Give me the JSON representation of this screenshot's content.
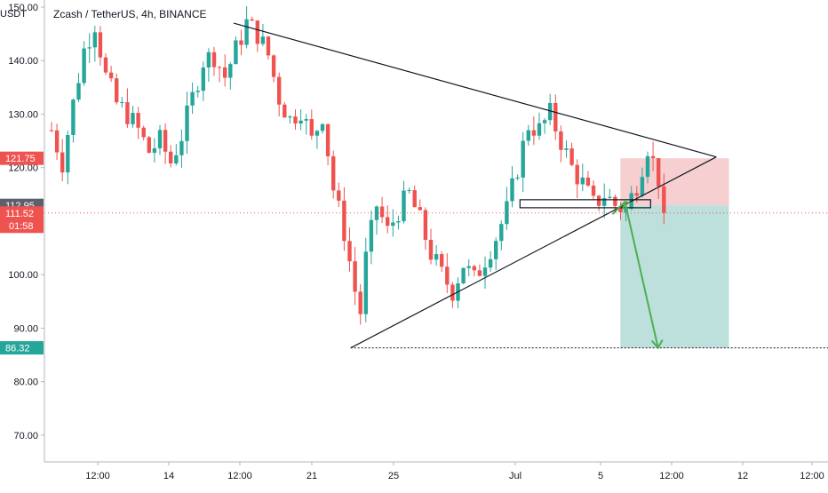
{
  "header": {
    "currency": "USDT",
    "title": "Zcash / TetherUS, 4h, BINANCE"
  },
  "colors": {
    "up": "#26a69a",
    "down": "#ef5350",
    "risk_zone": "#f4c7c9",
    "reward_zone": "#b2dbd6",
    "arrow": "#4caf50",
    "lines": "#131722"
  },
  "chart_data": {
    "type": "candlestick",
    "title": "Zcash / TetherUS, 4h, BINANCE",
    "ylabel": "USDT",
    "ylim": [
      65,
      150
    ],
    "y_ticks": [
      {
        "value": 70,
        "label": "70.00"
      },
      {
        "value": 80,
        "label": "80.00"
      },
      {
        "value": 90,
        "label": "90.00"
      },
      {
        "value": 100,
        "label": "100.00"
      },
      {
        "value": 120,
        "label": "120.00"
      },
      {
        "value": 130,
        "label": "130.00"
      },
      {
        "value": 140,
        "label": "140.00"
      },
      {
        "value": 150,
        "label": "150.00"
      }
    ],
    "x_ticks": [
      "12:00",
      "14",
      "12:00",
      "21",
      "25",
      "Jul",
      "5",
      "12:00",
      "12",
      "12:00"
    ],
    "price_labels": [
      {
        "value": 121.75,
        "label": "121.75",
        "kind": "stop"
      },
      {
        "value": 112.95,
        "label": "112.95",
        "kind": "entry"
      },
      {
        "value": 111.52,
        "label": "111.52",
        "kind": "last"
      },
      {
        "value": 86.32,
        "label": "86.32",
        "kind": "target"
      }
    ],
    "countdown": "01:58",
    "last_price": 111.52,
    "target_price": 86.32,
    "stop_price": 121.75,
    "entry_price": 112.95,
    "grid": false,
    "legend": "none",
    "price_path": [
      [
        0,
        127
      ],
      [
        2,
        121
      ],
      [
        4,
        132
      ],
      [
        6,
        142
      ],
      [
        8,
        147
      ],
      [
        10,
        137
      ],
      [
        12,
        132
      ],
      [
        14,
        130
      ],
      [
        16,
        127
      ],
      [
        18,
        123
      ],
      [
        20,
        125
      ],
      [
        22,
        121
      ],
      [
        24,
        126
      ],
      [
        26,
        133
      ],
      [
        28,
        140
      ],
      [
        30,
        141
      ],
      [
        32,
        137
      ],
      [
        34,
        142
      ],
      [
        36,
        147
      ],
      [
        38,
        145
      ],
      [
        40,
        141
      ],
      [
        42,
        133
      ],
      [
        44,
        129
      ],
      [
        46,
        131
      ],
      [
        48,
        125
      ],
      [
        50,
        130
      ],
      [
        52,
        116
      ],
      [
        54,
        108
      ],
      [
        56,
        97
      ],
      [
        57,
        93
      ],
      [
        58,
        103
      ],
      [
        60,
        113
      ],
      [
        62,
        108
      ],
      [
        64,
        112
      ],
      [
        66,
        115
      ],
      [
        68,
        110
      ],
      [
        70,
        104
      ],
      [
        72,
        100
      ],
      [
        74,
        97
      ],
      [
        76,
        102
      ],
      [
        78,
        99
      ],
      [
        80,
        103
      ],
      [
        82,
        107
      ],
      [
        84,
        112
      ],
      [
        86,
        120
      ],
      [
        88,
        128
      ],
      [
        90,
        127
      ],
      [
        92,
        130
      ],
      [
        94,
        125
      ],
      [
        96,
        120
      ],
      [
        98,
        117
      ],
      [
        100,
        113
      ],
      [
        102,
        115
      ],
      [
        104,
        113
      ],
      [
        106,
        112
      ],
      [
        108,
        117
      ],
      [
        110,
        124
      ],
      [
        112,
        118
      ],
      [
        113,
        111.52
      ]
    ],
    "drawings": {
      "upper_trendline": [
        [
          30,
          147
        ],
        [
          103,
          122
        ]
      ],
      "lower_trendline": [
        [
          57,
          86.3
        ],
        [
          103,
          122
        ]
      ],
      "support_box": {
        "bar_start": 83,
        "bar_end": 103,
        "price_top": 114,
        "price_bottom": 112.5
      },
      "risk_reward": {
        "bar_start": 103,
        "bar_end": 125,
        "stop": 121.75,
        "entry": 112.95,
        "target": 86.32
      },
      "projection_arrow": [
        [
          104,
          112.95
        ],
        [
          107,
          86.32
        ]
      ],
      "target_line": {
        "bar_start": 57,
        "price": 86.32
      }
    }
  }
}
